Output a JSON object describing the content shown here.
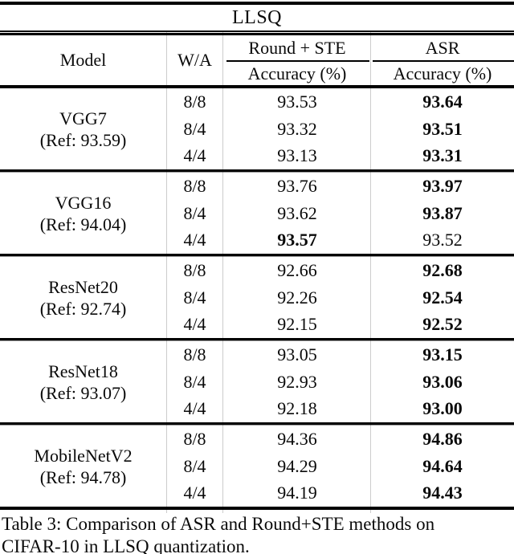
{
  "title": "LLSQ",
  "header": {
    "model": "Model",
    "wa": "W/A",
    "method1": "Round + STE",
    "method2": "ASR",
    "accuracy1": "Accuracy (%)",
    "accuracy2": "Accuracy (%)"
  },
  "table": {
    "groups": [
      {
        "model": "VGG7",
        "ref": "(Ref: 93.59)",
        "rows": [
          {
            "wa": "8/8",
            "round_ste": "93.53",
            "round_ste_bold": false,
            "asr": "93.64",
            "asr_bold": true
          },
          {
            "wa": "8/4",
            "round_ste": "93.32",
            "round_ste_bold": false,
            "asr": "93.51",
            "asr_bold": true
          },
          {
            "wa": "4/4",
            "round_ste": "93.13",
            "round_ste_bold": false,
            "asr": "93.31",
            "asr_bold": true
          }
        ]
      },
      {
        "model": "VGG16",
        "ref": "(Ref: 94.04)",
        "rows": [
          {
            "wa": "8/8",
            "round_ste": "93.76",
            "round_ste_bold": false,
            "asr": "93.97",
            "asr_bold": true
          },
          {
            "wa": "8/4",
            "round_ste": "93.62",
            "round_ste_bold": false,
            "asr": "93.87",
            "asr_bold": true
          },
          {
            "wa": "4/4",
            "round_ste": "93.57",
            "round_ste_bold": true,
            "asr": "93.52",
            "asr_bold": false
          }
        ]
      },
      {
        "model": "ResNet20",
        "ref": "(Ref: 92.74)",
        "rows": [
          {
            "wa": "8/8",
            "round_ste": "92.66",
            "round_ste_bold": false,
            "asr": "92.68",
            "asr_bold": true
          },
          {
            "wa": "8/4",
            "round_ste": "92.26",
            "round_ste_bold": false,
            "asr": "92.54",
            "asr_bold": true
          },
          {
            "wa": "4/4",
            "round_ste": "92.15",
            "round_ste_bold": false,
            "asr": "92.52",
            "asr_bold": true
          }
        ]
      },
      {
        "model": "ResNet18",
        "ref": "(Ref: 93.07)",
        "rows": [
          {
            "wa": "8/8",
            "round_ste": "93.05",
            "round_ste_bold": false,
            "asr": "93.15",
            "asr_bold": true
          },
          {
            "wa": "8/4",
            "round_ste": "92.93",
            "round_ste_bold": false,
            "asr": "93.06",
            "asr_bold": true
          },
          {
            "wa": "4/4",
            "round_ste": "92.18",
            "round_ste_bold": false,
            "asr": "93.00",
            "asr_bold": true
          }
        ]
      },
      {
        "model": "MobileNetV2",
        "ref": "(Ref: 94.78)",
        "rows": [
          {
            "wa": "8/8",
            "round_ste": "94.36",
            "round_ste_bold": false,
            "asr": "94.86",
            "asr_bold": true
          },
          {
            "wa": "8/4",
            "round_ste": "94.29",
            "round_ste_bold": false,
            "asr": "94.64",
            "asr_bold": true
          },
          {
            "wa": "4/4",
            "round_ste": "94.19",
            "round_ste_bold": false,
            "asr": "94.43",
            "asr_bold": true
          }
        ]
      }
    ]
  },
  "caption": {
    "line1": "Table 3: Comparison of ASR and Round+STE methods on",
    "line2": "CIFAR-10 in LLSQ quantization."
  },
  "chart_data": {
    "type": "table",
    "title": "LLSQ",
    "columns": [
      "Model",
      "W/A",
      "Round + STE Accuracy (%)",
      "ASR Accuracy (%)"
    ],
    "rows": [
      [
        "VGG7 (Ref: 93.59)",
        "8/8",
        93.53,
        93.64
      ],
      [
        "VGG7 (Ref: 93.59)",
        "8/4",
        93.32,
        93.51
      ],
      [
        "VGG7 (Ref: 93.59)",
        "4/4",
        93.13,
        93.31
      ],
      [
        "VGG16 (Ref: 94.04)",
        "8/8",
        93.76,
        93.97
      ],
      [
        "VGG16 (Ref: 94.04)",
        "8/4",
        93.62,
        93.87
      ],
      [
        "VGG16 (Ref: 94.04)",
        "4/4",
        93.57,
        93.52
      ],
      [
        "ResNet20 (Ref: 92.74)",
        "8/8",
        92.66,
        92.68
      ],
      [
        "ResNet20 (Ref: 92.74)",
        "8/4",
        92.26,
        92.54
      ],
      [
        "ResNet20 (Ref: 92.74)",
        "4/4",
        92.15,
        92.52
      ],
      [
        "ResNet18 (Ref: 93.07)",
        "8/8",
        93.05,
        93.15
      ],
      [
        "ResNet18 (Ref: 93.07)",
        "8/4",
        92.93,
        93.06
      ],
      [
        "ResNet18 (Ref: 93.07)",
        "4/4",
        92.18,
        93.0
      ],
      [
        "MobileNetV2 (Ref: 94.78)",
        "8/8",
        94.36,
        94.86
      ],
      [
        "MobileNetV2 (Ref: 94.78)",
        "8/4",
        94.29,
        94.64
      ],
      [
        "MobileNetV2 (Ref: 94.78)",
        "4/4",
        94.19,
        94.43
      ]
    ],
    "bold_cells_note": "bold marks best accuracy per row; ASR bold everywhere except VGG16 4/4 where Round+STE 93.57 is bold"
  }
}
